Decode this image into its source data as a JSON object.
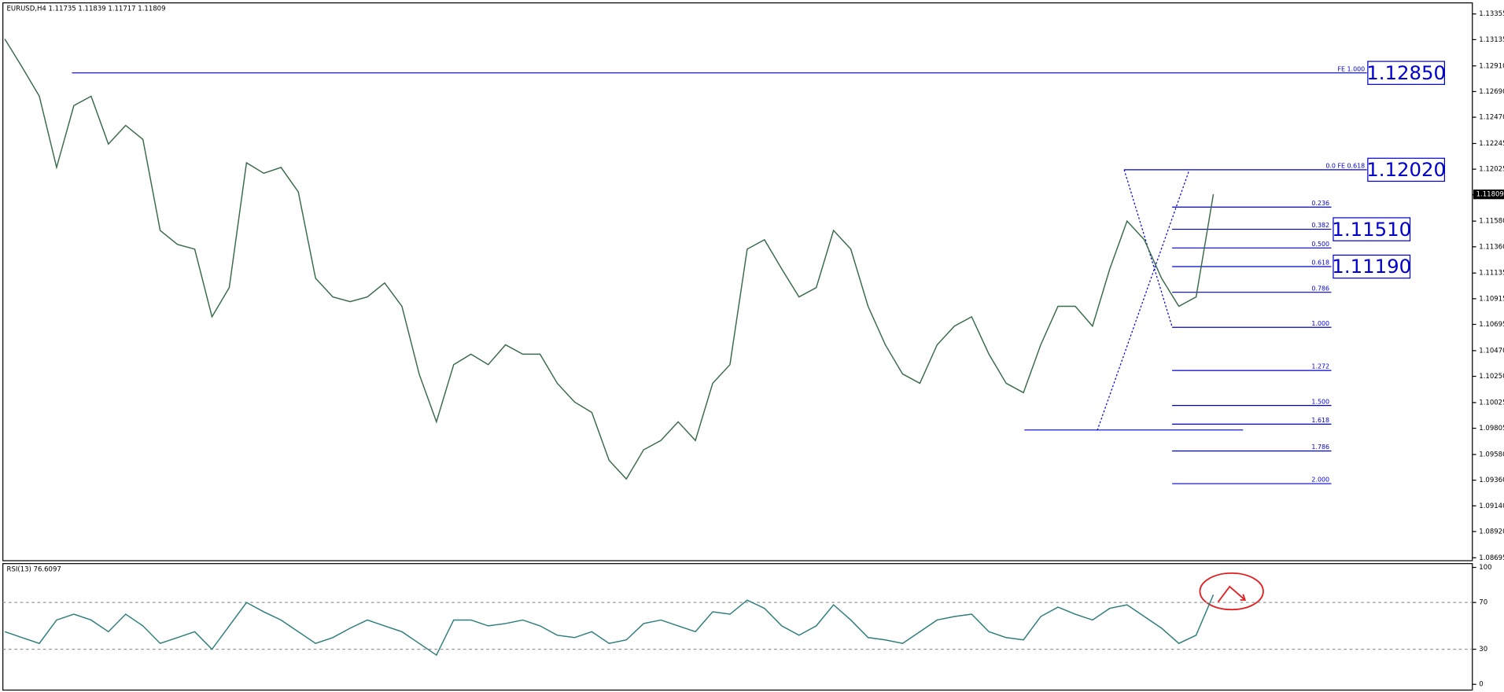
{
  "chart_data": [
    {
      "type": "line",
      "title": "EURUSD,H4  1.11735 1.11839 1.11717 1.11809",
      "color": "#3a6b4a",
      "values": [
        1.1314,
        1.129,
        1.1265,
        1.1204,
        1.1257,
        1.1265,
        1.1224,
        1.124,
        1.1228,
        1.115,
        1.1138,
        1.1134,
        1.1076,
        1.1101,
        1.1208,
        1.1199,
        1.1204,
        1.1183,
        1.1109,
        1.1093,
        1.1089,
        1.1093,
        1.1105,
        1.1085,
        1.1027,
        1.0986,
        1.1035,
        1.1044,
        1.1035,
        1.1052,
        1.1044,
        1.1044,
        1.1019,
        1.1003,
        1.0994,
        1.0953,
        1.0937,
        1.0962,
        1.097,
        1.0986,
        1.097,
        1.1019,
        1.1035,
        1.1134,
        1.1142,
        1.1117,
        1.1093,
        1.1101,
        1.115,
        1.1134,
        1.1085,
        1.1052,
        1.1027,
        1.1019,
        1.1052,
        1.1068,
        1.1076,
        1.1044,
        1.1019,
        1.1011,
        1.1052,
        1.1085,
        1.1085,
        1.1068,
        1.1117,
        1.1158,
        1.1142,
        1.1109,
        1.1085,
        1.1093,
        1.1181
      ],
      "ylim": [
        1.0867,
        1.1345
      ],
      "yticks": [
        {
          "value": 1.13355,
          "label": "1.13355"
        },
        {
          "value": 1.13135,
          "label": "1.13135"
        },
        {
          "value": 1.1291,
          "label": "1.12910"
        },
        {
          "value": 1.1269,
          "label": "1.12690"
        },
        {
          "value": 1.1247,
          "label": "1.12470"
        },
        {
          "value": 1.12245,
          "label": "1.12245"
        },
        {
          "value": 1.12025,
          "label": "1.12025"
        },
        {
          "value": 1.11805,
          "label": "1.11805"
        },
        {
          "value": 1.1158,
          "label": "1.11580"
        },
        {
          "value": 1.1136,
          "label": "1.11360"
        },
        {
          "value": 1.11135,
          "label": "1.11135"
        },
        {
          "value": 1.10915,
          "label": "1.10915"
        },
        {
          "value": 1.10695,
          "label": "1.10695"
        },
        {
          "value": 1.1047,
          "label": "1.10470"
        },
        {
          "value": 1.1025,
          "label": "1.10250"
        },
        {
          "value": 1.10025,
          "label": "1.10025"
        },
        {
          "value": 1.09805,
          "label": "1.09805"
        },
        {
          "value": 1.0958,
          "label": "1.09580"
        },
        {
          "value": 1.0936,
          "label": "1.09360"
        },
        {
          "value": 1.0914,
          "label": "1.09140"
        },
        {
          "value": 1.0892,
          "label": "1.08920"
        },
        {
          "value": 1.08695,
          "label": "1.08695"
        }
      ],
      "current_price": 1.11809,
      "fe_levels": [
        {
          "value": 1.1285,
          "label": "FE 1.000"
        },
        {
          "value": 1.1202,
          "label": "0.0 FE 0.618"
        }
      ],
      "fib_levels": [
        {
          "value": 1.117,
          "label": "0.236"
        },
        {
          "value": 1.1151,
          "label": "0.382"
        },
        {
          "value": 1.1135,
          "label": "0.500"
        },
        {
          "value": 1.1119,
          "label": "0.618"
        },
        {
          "value": 1.1097,
          "label": "0.786"
        },
        {
          "value": 1.1067,
          "label": "1.000"
        },
        {
          "value": 1.103,
          "label": "1.272"
        },
        {
          "value": 1.1,
          "label": "1.500"
        },
        {
          "value": 1.0984,
          "label": "1.618"
        },
        {
          "value": 1.0961,
          "label": "1.786"
        },
        {
          "value": 1.0933,
          "label": "2.000"
        }
      ],
      "support_line": 1.0979,
      "annotations": [
        {
          "value": 1.1285,
          "label": "1.12850"
        },
        {
          "value": 1.1202,
          "label": "1.12020"
        },
        {
          "value": 1.1151,
          "label": "1.11510"
        },
        {
          "value": 1.1119,
          "label": "1.11190"
        }
      ]
    },
    {
      "type": "line",
      "title": "RSI(13) 76.6097",
      "color": "#2e7d7d",
      "values": [
        45,
        40,
        35,
        55,
        60,
        55,
        45,
        60,
        50,
        35,
        40,
        45,
        30,
        50,
        70,
        62,
        55,
        45,
        35,
        40,
        48,
        55,
        50,
        45,
        35,
        25,
        55,
        55,
        50,
        52,
        55,
        50,
        42,
        40,
        45,
        35,
        38,
        52,
        55,
        50,
        45,
        62,
        60,
        72,
        65,
        50,
        42,
        50,
        68,
        55,
        40,
        38,
        35,
        45,
        55,
        58,
        60,
        45,
        40,
        38,
        58,
        66,
        60,
        55,
        65,
        68,
        58,
        48,
        35,
        42,
        76.6
      ],
      "ylim": [
        0,
        100
      ],
      "yticks": [
        0,
        30,
        70,
        100
      ],
      "levels": [
        30,
        70
      ]
    }
  ]
}
